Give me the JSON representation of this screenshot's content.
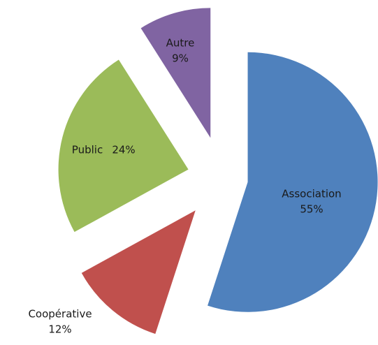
{
  "chart_data": {
    "type": "pie",
    "categories": [
      "Association",
      "Coopérative",
      "Public",
      "Autre"
    ],
    "values": [
      55,
      12,
      24,
      9
    ],
    "value_labels": [
      "55%",
      "12%",
      "24%",
      "9%"
    ],
    "colors": [
      "#4f81bd",
      "#c0504d",
      "#9bbb59",
      "#8064a2"
    ]
  }
}
